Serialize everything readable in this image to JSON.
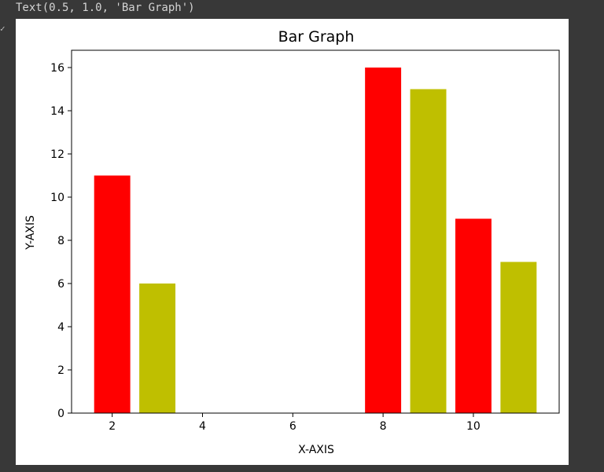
{
  "cell_output": {
    "text": "Text(0.5, 1.0, 'Bar Graph')"
  },
  "gutter": {
    "marker": "✓"
  },
  "chart_data": {
    "type": "bar",
    "title": "Bar Graph",
    "xlabel": "X-AXIS",
    "ylabel": "Y-AXIS",
    "xlim": [
      1.1,
      11.9
    ],
    "ylim": [
      0,
      16.8
    ],
    "xticks": [
      2,
      4,
      6,
      8,
      10
    ],
    "yticks": [
      0,
      2,
      4,
      6,
      8,
      10,
      12,
      14,
      16
    ],
    "bar_width": 0.8,
    "grid": false,
    "series": [
      {
        "color": "#ff0000",
        "x": [
          2,
          8,
          10
        ],
        "values": [
          11,
          16,
          9
        ]
      },
      {
        "color": "#bfbf00",
        "x": [
          3,
          9,
          11
        ],
        "values": [
          6,
          15,
          7
        ]
      }
    ]
  }
}
